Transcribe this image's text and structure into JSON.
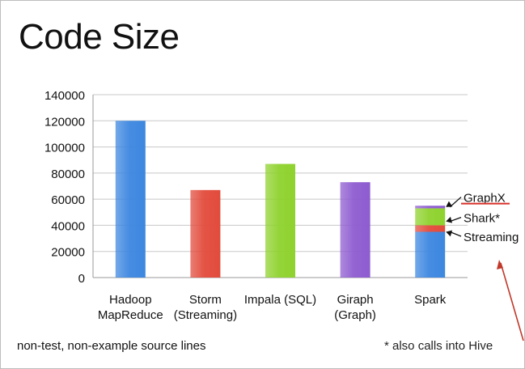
{
  "slide": {
    "title": "Code Size",
    "footnote_left": "non-test, non-example source lines",
    "footnote_right": "* also calls into Hive"
  },
  "colors": {
    "hadoop": "#3d87e0",
    "storm": "#e24b3c",
    "impala": "#8fd22e",
    "giraph": "#8e5cd0",
    "spark_streaming_blue": "#3d87e0",
    "spark_streaming_red": "#e24b3c",
    "spark_shark": "#8fd22e",
    "spark_graphx": "#8e5cd0",
    "annotation_underline": "#d9302a",
    "corner_arrow": "#c0392b",
    "grid": "#c8c8c8"
  },
  "chart_data": {
    "type": "bar",
    "categories": [
      [
        "Hadoop",
        "MapReduce"
      ],
      [
        "Storm",
        "(Streaming)"
      ],
      [
        "Impala (SQL)"
      ],
      [
        "Giraph",
        "(Graph)"
      ],
      [
        "Spark"
      ]
    ],
    "values": [
      120000,
      67000,
      87000,
      73000,
      55000
    ],
    "spark_stack": [
      {
        "name": "Streaming",
        "from": 0,
        "to": 35000,
        "color": "#3d87e0"
      },
      {
        "name": "Streaming",
        "from": 35000,
        "to": 40000,
        "color": "#e24b3c"
      },
      {
        "name": "Shark*",
        "from": 40000,
        "to": 53000,
        "color": "#8fd22e"
      },
      {
        "name": "GraphX",
        "from": 53000,
        "to": 55000,
        "color": "#8e5cd0"
      }
    ],
    "annotations": [
      {
        "label": "GraphX",
        "target": 54000,
        "text_at": 58500,
        "underline": true
      },
      {
        "label": "Shark*",
        "target": 43000,
        "text_at": 43000,
        "underline": false
      },
      {
        "label": "Streaming",
        "target": 35000,
        "text_at": 28500,
        "underline": false
      }
    ],
    "ylim": [
      0,
      140000
    ],
    "yticks": [
      "0",
      "20000",
      "40000",
      "60000",
      "80000",
      "100000",
      "120000",
      "140000"
    ],
    "ytick_values": [
      0,
      20000,
      40000,
      60000,
      80000,
      100000,
      120000,
      140000
    ],
    "grid": true,
    "xlabel": "",
    "ylabel": ""
  }
}
